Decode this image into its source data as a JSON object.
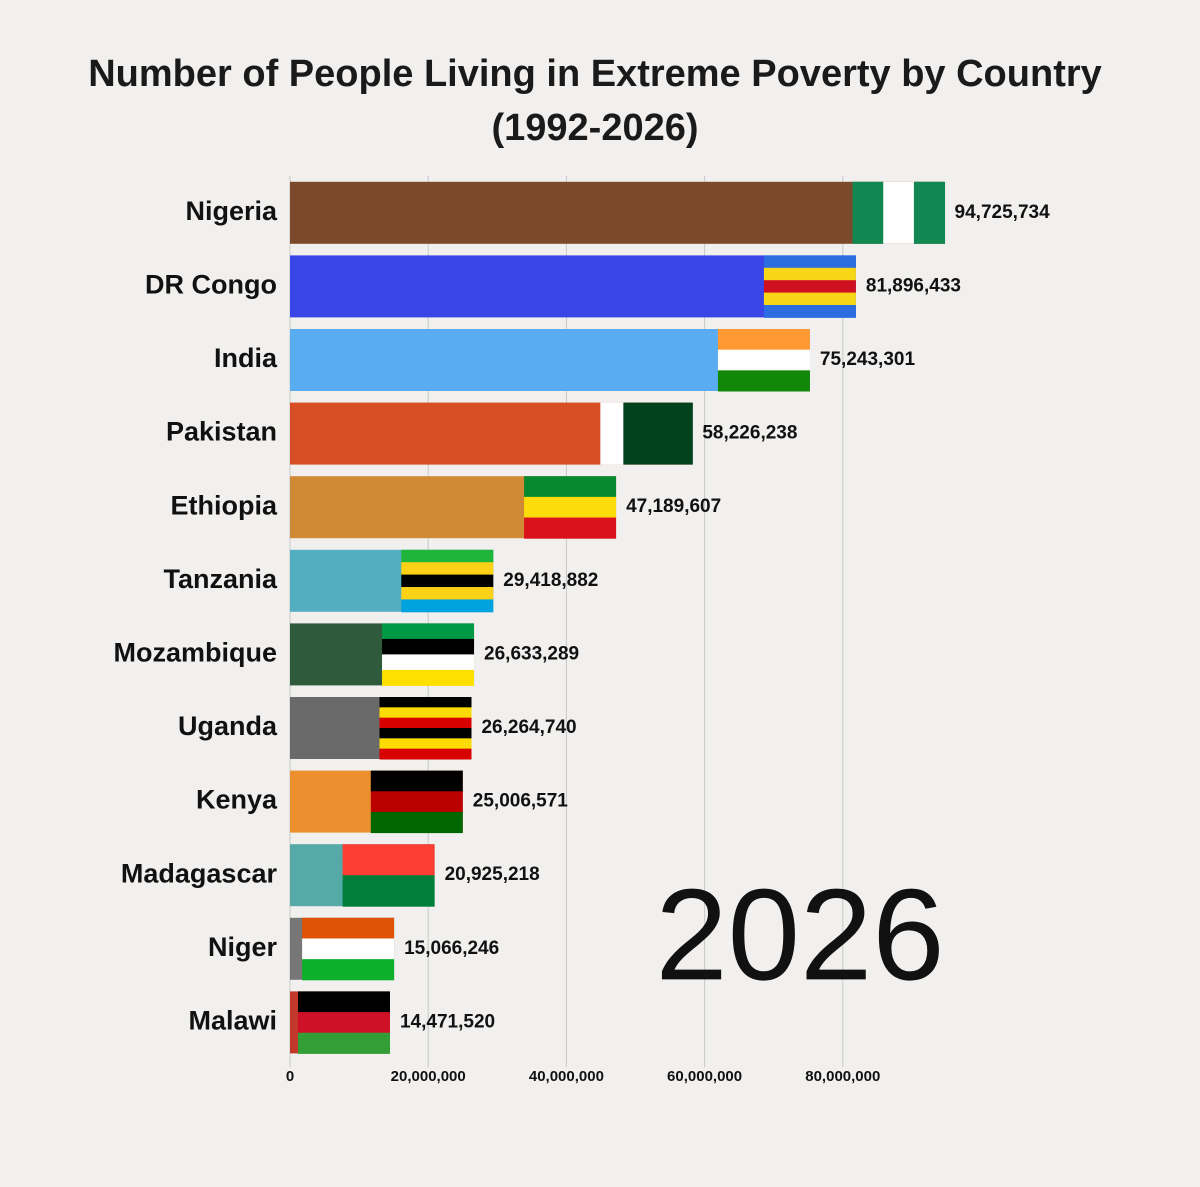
{
  "chart_data": {
    "type": "barh",
    "title": "Number of People Living in Extreme Poverty by Country",
    "subtitle": "(1992-2026)",
    "annotation": "2026",
    "categories": [
      "Nigeria",
      "DR Congo",
      "India",
      "Pakistan",
      "Ethiopia",
      "Tanzania",
      "Mozambique",
      "Uganda",
      "Kenya",
      "Madagascar",
      "Niger",
      "Malawi"
    ],
    "values": [
      94725734,
      81896433,
      75243301,
      58226238,
      47189607,
      29418882,
      26633289,
      26264740,
      25006571,
      20925218,
      15066246,
      14471520
    ],
    "value_labels": [
      "94,725,734",
      "81,896,433",
      "75,243,301",
      "58,226,238",
      "47,189,607",
      "29,418,882",
      "26,633,289",
      "26,264,740",
      "25,006,571",
      "20,925,218",
      "15,066,246",
      "14,471,520"
    ],
    "colors": [
      "#7b4a2a",
      "#3a45e8",
      "#5aacf0",
      "#d94f25",
      "#d08a35",
      "#52aec0",
      "#2f5a3c",
      "#6a6a6a",
      "#ec8f2e",
      "#55aaa8",
      "#777777",
      "#c0392b"
    ],
    "xlim": [
      0,
      100000000
    ],
    "xticks": [
      0,
      {
        "value": 20000000,
        "label": "20,000,000"
      },
      {
        "value": 40000000,
        "label": "40,000,000"
      },
      {
        "value": 60000000,
        "label": "60,000,000"
      },
      {
        "value": 80000000,
        "label": "80,000,000"
      }
    ],
    "grid": true
  }
}
